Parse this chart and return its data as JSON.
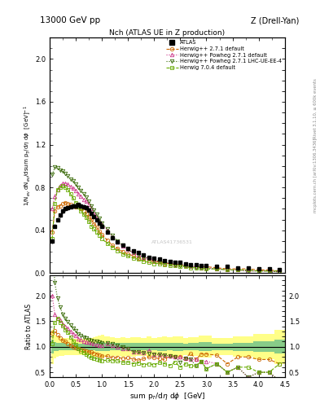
{
  "title_top": "13000 GeV pp",
  "title_right": "Z (Drell-Yan)",
  "plot_title": "Nch (ATLAS UE in Z production)",
  "ylabel_main": "1/N$_{ev}$ dN$_{ev}$/dsum p$_T$/dη dϕ  [GeV]$^{-1}$",
  "ylabel_ratio": "Ratio to ATLAS",
  "xlabel": "sum p$_T$/dη dϕ  [GeV]",
  "side_text1": "Rivet 3.1.10, ≥ 600k events",
  "side_text2": "mcplots.cern.ch [arXiv:1306.3436]",
  "xlim": [
    0,
    4.5
  ],
  "ylim_main": [
    0.0,
    2.2
  ],
  "ylim_ratio": [
    0.4,
    2.4
  ],
  "yticks_ratio": [
    0.5,
    1.0,
    1.5,
    2.0
  ],
  "atlas_x": [
    0.05,
    0.1,
    0.15,
    0.2,
    0.25,
    0.3,
    0.35,
    0.4,
    0.45,
    0.5,
    0.55,
    0.6,
    0.65,
    0.7,
    0.75,
    0.8,
    0.85,
    0.9,
    0.95,
    1.0,
    1.1,
    1.2,
    1.3,
    1.4,
    1.5,
    1.6,
    1.7,
    1.8,
    1.9,
    2.0,
    2.1,
    2.2,
    2.3,
    2.4,
    2.5,
    2.6,
    2.7,
    2.8,
    2.9,
    3.0,
    3.2,
    3.4,
    3.6,
    3.8,
    4.0,
    4.2,
    4.4
  ],
  "atlas_y": [
    0.3,
    0.44,
    0.5,
    0.54,
    0.58,
    0.6,
    0.61,
    0.62,
    0.63,
    0.63,
    0.64,
    0.63,
    0.62,
    0.61,
    0.59,
    0.56,
    0.53,
    0.5,
    0.47,
    0.44,
    0.38,
    0.33,
    0.29,
    0.26,
    0.23,
    0.21,
    0.19,
    0.17,
    0.15,
    0.14,
    0.13,
    0.12,
    0.11,
    0.1,
    0.1,
    0.09,
    0.08,
    0.08,
    0.07,
    0.07,
    0.06,
    0.06,
    0.05,
    0.05,
    0.04,
    0.04,
    0.03
  ],
  "atlas_yerr": [
    0.02,
    0.02,
    0.02,
    0.02,
    0.02,
    0.02,
    0.02,
    0.02,
    0.02,
    0.02,
    0.02,
    0.02,
    0.02,
    0.02,
    0.02,
    0.02,
    0.02,
    0.02,
    0.02,
    0.02,
    0.015,
    0.012,
    0.01,
    0.01,
    0.008,
    0.008,
    0.007,
    0.006,
    0.006,
    0.005,
    0.005,
    0.005,
    0.004,
    0.004,
    0.004,
    0.003,
    0.003,
    0.003,
    0.003,
    0.003,
    0.002,
    0.002,
    0.002,
    0.002,
    0.002,
    0.002,
    0.002
  ],
  "herwig271_x": [
    0.05,
    0.1,
    0.15,
    0.2,
    0.25,
    0.3,
    0.35,
    0.4,
    0.45,
    0.5,
    0.55,
    0.6,
    0.65,
    0.7,
    0.75,
    0.8,
    0.85,
    0.9,
    0.95,
    1.0,
    1.1,
    1.2,
    1.3,
    1.4,
    1.5,
    1.6,
    1.7,
    1.8,
    1.9,
    2.0,
    2.1,
    2.2,
    2.3,
    2.4,
    2.5,
    2.6,
    2.7,
    2.8,
    2.9,
    3.0,
    3.2,
    3.4,
    3.6,
    3.8,
    4.0,
    4.2,
    4.4
  ],
  "herwig271_y": [
    0.38,
    0.58,
    0.62,
    0.63,
    0.65,
    0.66,
    0.65,
    0.64,
    0.63,
    0.62,
    0.62,
    0.6,
    0.58,
    0.56,
    0.53,
    0.5,
    0.46,
    0.43,
    0.39,
    0.36,
    0.31,
    0.26,
    0.23,
    0.2,
    0.18,
    0.16,
    0.14,
    0.13,
    0.12,
    0.11,
    0.1,
    0.09,
    0.09,
    0.08,
    0.08,
    0.07,
    0.07,
    0.06,
    0.06,
    0.06,
    0.05,
    0.04,
    0.04,
    0.04,
    0.03,
    0.03,
    0.02
  ],
  "herwig271powheg_x": [
    0.05,
    0.1,
    0.15,
    0.2,
    0.25,
    0.3,
    0.35,
    0.4,
    0.45,
    0.5,
    0.55,
    0.6,
    0.65,
    0.7,
    0.75,
    0.8,
    0.85,
    0.9,
    0.95,
    1.0,
    1.1,
    1.2,
    1.3,
    1.4,
    1.5,
    1.6,
    1.7,
    1.8,
    1.9,
    2.0,
    2.1,
    2.2,
    2.3,
    2.4,
    2.5,
    2.6,
    2.7,
    2.8,
    2.9,
    3.0,
    3.2,
    3.4,
    3.6,
    3.8,
    4.0,
    4.2,
    4.4
  ],
  "herwig271powheg_y": [
    0.6,
    0.72,
    0.78,
    0.82,
    0.84,
    0.84,
    0.83,
    0.81,
    0.79,
    0.77,
    0.74,
    0.72,
    0.69,
    0.67,
    0.64,
    0.6,
    0.56,
    0.52,
    0.48,
    0.45,
    0.4,
    0.34,
    0.29,
    0.25,
    0.22,
    0.19,
    0.17,
    0.15,
    0.14,
    0.12,
    0.11,
    0.1,
    0.09,
    0.08,
    0.08,
    0.07,
    0.06,
    0.06,
    0.05,
    0.05,
    0.04,
    0.03,
    0.03,
    0.02,
    0.02,
    0.02,
    0.01
  ],
  "herwig271lhc_x": [
    0.05,
    0.1,
    0.15,
    0.2,
    0.25,
    0.3,
    0.35,
    0.4,
    0.45,
    0.5,
    0.55,
    0.6,
    0.65,
    0.7,
    0.75,
    0.8,
    0.85,
    0.9,
    0.95,
    1.0,
    1.1,
    1.2,
    1.3,
    1.4,
    1.5,
    1.6,
    1.7,
    1.8,
    1.9,
    2.0,
    2.1,
    2.2,
    2.3,
    2.4,
    2.5,
    2.6,
    2.7,
    2.8,
    2.9,
    3.0,
    3.2,
    3.4,
    3.6,
    3.8,
    4.0,
    4.2,
    4.4
  ],
  "herwig271lhc_y": [
    0.92,
    0.99,
    0.98,
    0.96,
    0.95,
    0.93,
    0.91,
    0.88,
    0.86,
    0.83,
    0.8,
    0.77,
    0.74,
    0.71,
    0.67,
    0.63,
    0.59,
    0.55,
    0.51,
    0.47,
    0.41,
    0.35,
    0.3,
    0.26,
    0.22,
    0.19,
    0.17,
    0.15,
    0.13,
    0.12,
    0.11,
    0.1,
    0.09,
    0.08,
    0.07,
    0.07,
    0.06,
    0.05,
    0.05,
    0.04,
    0.04,
    0.03,
    0.03,
    0.02,
    0.02,
    0.02,
    0.01
  ],
  "herwig704_x": [
    0.05,
    0.1,
    0.15,
    0.2,
    0.25,
    0.3,
    0.35,
    0.4,
    0.45,
    0.5,
    0.55,
    0.6,
    0.65,
    0.7,
    0.75,
    0.8,
    0.85,
    0.9,
    0.95,
    1.0,
    1.1,
    1.2,
    1.3,
    1.4,
    1.5,
    1.6,
    1.7,
    1.8,
    1.9,
    2.0,
    2.1,
    2.2,
    2.3,
    2.4,
    2.5,
    2.6,
    2.7,
    2.8,
    2.9,
    3.0,
    3.2,
    3.4,
    3.6,
    3.8,
    4.0,
    4.2,
    4.4
  ],
  "herwig704_y": [
    0.32,
    0.65,
    0.78,
    0.8,
    0.82,
    0.8,
    0.78,
    0.74,
    0.7,
    0.66,
    0.62,
    0.58,
    0.55,
    0.52,
    0.48,
    0.44,
    0.41,
    0.38,
    0.35,
    0.32,
    0.28,
    0.24,
    0.21,
    0.18,
    0.16,
    0.14,
    0.13,
    0.11,
    0.1,
    0.09,
    0.09,
    0.08,
    0.07,
    0.07,
    0.06,
    0.06,
    0.05,
    0.05,
    0.05,
    0.04,
    0.04,
    0.03,
    0.03,
    0.03,
    0.02,
    0.02,
    0.02
  ],
  "color_herwig271": "#cc6600",
  "color_herwig271powheg": "#cc3388",
  "color_herwig271lhc": "#336600",
  "color_herwig704": "#66aa00",
  "band_yellow": "#ffff88",
  "band_green": "#88cc88",
  "watermark": "ATLAS41736531"
}
